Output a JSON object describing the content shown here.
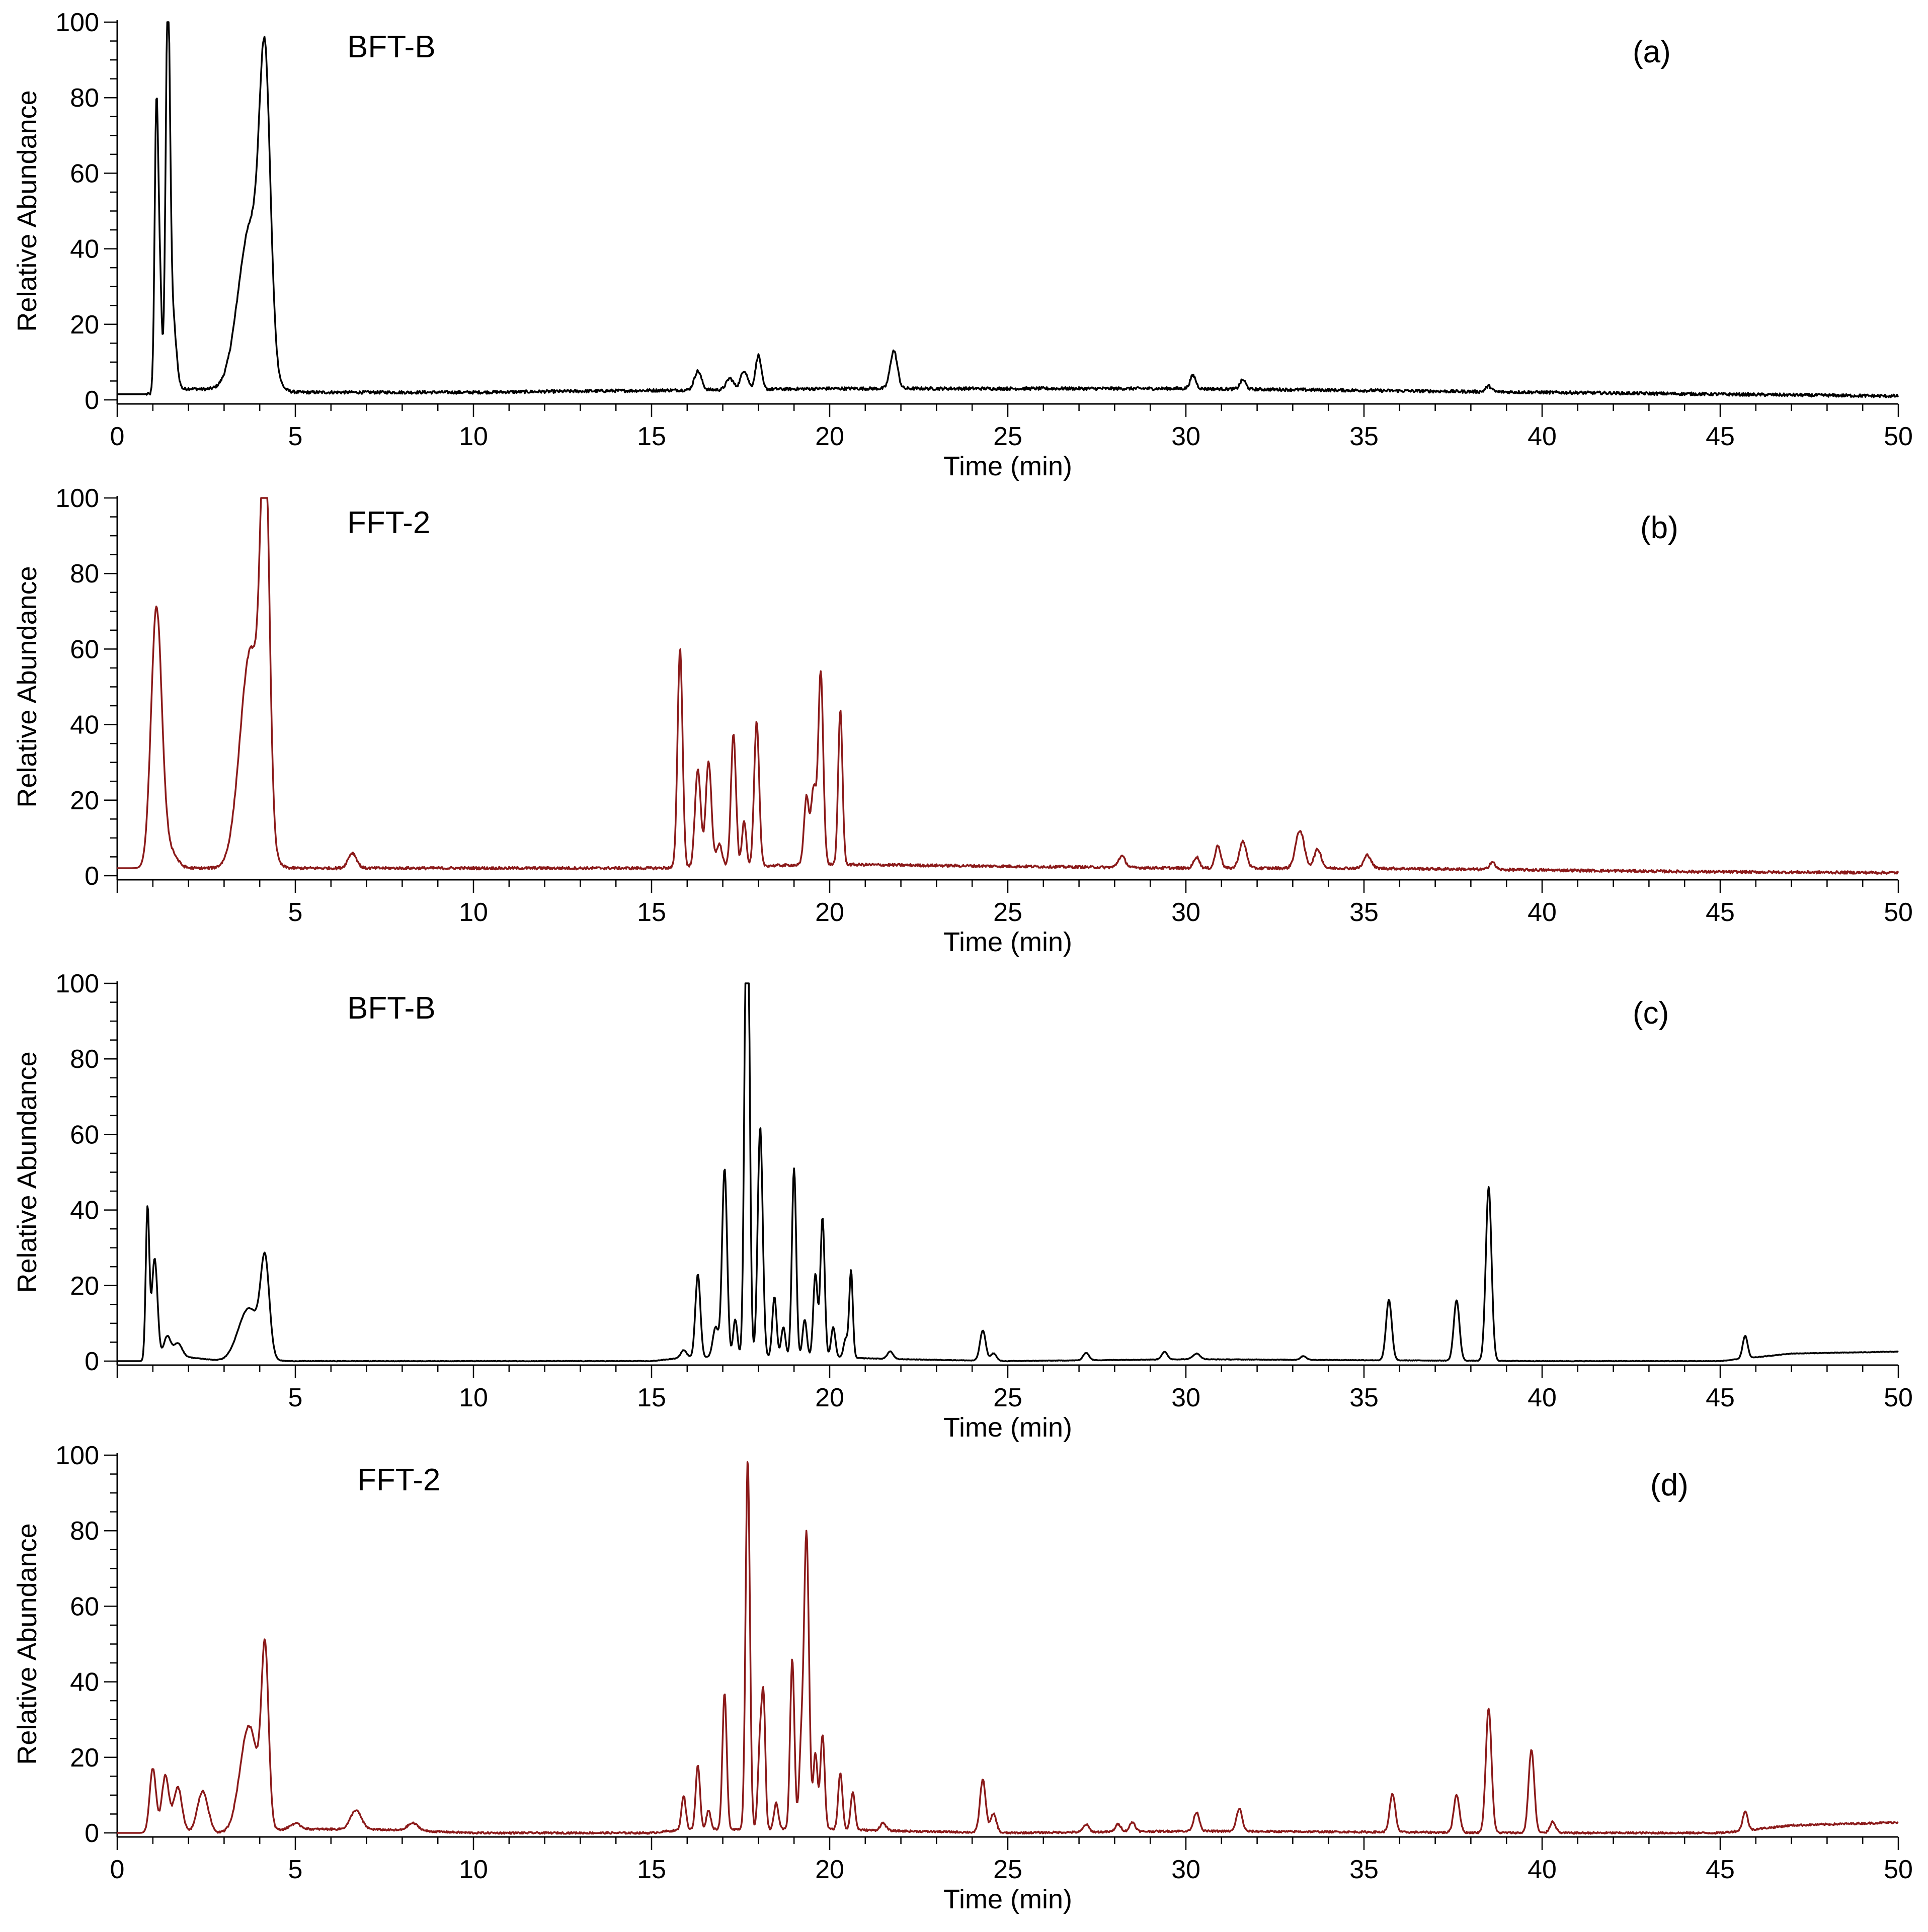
{
  "colors": {
    "black": "#000000",
    "dark_red": "#8b1a1a"
  },
  "chart_data": [
    {
      "type": "line",
      "panel_label": "(a)",
      "sample": "BFT-B",
      "line_color": "#000000",
      "xlabel": "Time (min)",
      "ylabel": "Relative Abundance",
      "xlim": [
        0,
        50
      ],
      "ylim": [
        0,
        100
      ],
      "xticks": [
        "0",
        "5",
        "10",
        "15",
        "20",
        "25",
        "30",
        "35",
        "40",
        "45",
        "50"
      ],
      "yticks": [
        "0",
        "20",
        "40",
        "60",
        "80",
        "100"
      ],
      "baseline": [
        [
          0,
          1.5
        ],
        [
          0.9,
          1.5
        ],
        [
          2,
          3
        ],
        [
          4.5,
          2
        ],
        [
          10,
          2
        ],
        [
          15,
          2.5
        ],
        [
          20,
          3
        ],
        [
          25,
          3
        ],
        [
          30,
          3
        ],
        [
          35,
          2.5
        ],
        [
          40,
          2
        ],
        [
          45,
          1.5
        ],
        [
          50,
          1
        ]
      ],
      "peaks": [
        [
          1.1,
          75,
          0.05
        ],
        [
          1.2,
          28,
          0.05
        ],
        [
          1.42,
          100,
          0.06
        ],
        [
          1.55,
          20,
          0.1
        ],
        [
          3.75,
          44,
          0.35
        ],
        [
          4.15,
          70,
          0.15
        ],
        [
          16.3,
          5,
          0.1
        ],
        [
          17.2,
          3,
          0.1
        ],
        [
          17.6,
          5,
          0.1
        ],
        [
          18.0,
          9,
          0.08
        ],
        [
          21.8,
          10,
          0.1
        ],
        [
          30.2,
          3.5,
          0.08
        ],
        [
          31.6,
          2.5,
          0.08
        ],
        [
          38.5,
          1.5,
          0.08
        ]
      ],
      "noise": 0.8
    },
    {
      "type": "line",
      "panel_label": "(b)",
      "sample": "FFT-2",
      "line_color": "#8b1a1a",
      "xlabel": "Time (min)",
      "ylabel": "Relative Abundance",
      "xlim": [
        0,
        50
      ],
      "ylim": [
        0,
        100
      ],
      "xticks": [
        "5",
        "10",
        "15",
        "20",
        "25",
        "30",
        "35",
        "40",
        "45",
        "50"
      ],
      "yticks": [
        "0",
        "20",
        "40",
        "60",
        "80",
        "100"
      ],
      "baseline": [
        [
          0,
          2
        ],
        [
          0.9,
          2
        ],
        [
          2,
          2
        ],
        [
          5,
          2
        ],
        [
          10,
          2
        ],
        [
          15,
          2
        ],
        [
          20,
          3
        ],
        [
          25,
          2.5
        ],
        [
          30,
          2
        ],
        [
          35,
          2
        ],
        [
          40,
          1.5
        ],
        [
          45,
          1
        ],
        [
          50,
          0.8
        ]
      ],
      "peaks": [
        [
          1.1,
          68,
          0.15
        ],
        [
          1.45,
          5,
          0.2
        ],
        [
          3.75,
          58,
          0.3
        ],
        [
          4.15,
          98,
          0.12
        ],
        [
          6.6,
          4,
          0.12
        ],
        [
          15.8,
          58,
          0.07
        ],
        [
          16.3,
          26,
          0.08
        ],
        [
          16.6,
          28,
          0.08
        ],
        [
          16.9,
          6,
          0.08
        ],
        [
          17.3,
          35,
          0.07
        ],
        [
          17.6,
          12,
          0.06
        ],
        [
          17.95,
          38,
          0.07
        ],
        [
          19.35,
          18,
          0.07
        ],
        [
          19.55,
          20,
          0.07
        ],
        [
          19.75,
          51,
          0.07
        ],
        [
          20.3,
          41,
          0.06
        ],
        [
          28.2,
          3,
          0.1
        ],
        [
          30.3,
          3,
          0.08
        ],
        [
          30.9,
          6,
          0.08
        ],
        [
          31.6,
          7,
          0.1
        ],
        [
          33.2,
          10,
          0.12
        ],
        [
          33.7,
          5,
          0.1
        ],
        [
          35.1,
          3.5,
          0.1
        ],
        [
          38.6,
          2,
          0.08
        ]
      ],
      "noise": 0.7
    },
    {
      "type": "line",
      "panel_label": "(c)",
      "sample": "BFT-B",
      "line_color": "#000000",
      "xlabel": "Time (min)",
      "ylabel": "Relative Abundance",
      "xlim": [
        0,
        50
      ],
      "ylim": [
        0,
        100
      ],
      "xticks": [
        "5",
        "10",
        "15",
        "20",
        "25",
        "30",
        "35",
        "40",
        "45",
        "50"
      ],
      "yticks": [
        "0",
        "20",
        "40",
        "60",
        "80",
        "100"
      ],
      "baseline": [
        [
          0,
          0
        ],
        [
          0.8,
          0
        ],
        [
          2,
          1
        ],
        [
          3,
          0
        ],
        [
          5,
          0
        ],
        [
          10,
          0
        ],
        [
          15,
          0
        ],
        [
          16,
          1
        ],
        [
          20,
          1
        ],
        [
          22,
          0.5
        ],
        [
          25,
          0
        ],
        [
          30,
          0.5
        ],
        [
          40,
          0
        ],
        [
          45,
          0
        ],
        [
          46,
          1
        ],
        [
          47,
          2
        ],
        [
          50,
          2.5
        ]
      ],
      "peaks": [
        [
          0.85,
          40,
          0.05
        ],
        [
          1.05,
          27,
          0.08
        ],
        [
          1.4,
          6,
          0.1
        ],
        [
          1.7,
          4,
          0.12
        ],
        [
          3.7,
          14,
          0.3
        ],
        [
          4.15,
          24,
          0.12
        ],
        [
          15.9,
          2,
          0.08
        ],
        [
          16.3,
          22,
          0.07
        ],
        [
          16.8,
          8,
          0.08
        ],
        [
          17.05,
          50,
          0.07
        ],
        [
          17.35,
          10,
          0.06
        ],
        [
          17.65,
          58,
          0.06
        ],
        [
          17.7,
          98,
          0.06
        ],
        [
          18.05,
          61,
          0.07
        ],
        [
          18.45,
          16,
          0.06
        ],
        [
          18.7,
          8,
          0.06
        ],
        [
          19.0,
          50,
          0.06
        ],
        [
          19.3,
          10,
          0.06
        ],
        [
          19.6,
          22,
          0.06
        ],
        [
          19.8,
          37,
          0.06
        ],
        [
          20.1,
          8,
          0.06
        ],
        [
          20.45,
          5,
          0.06
        ],
        [
          20.6,
          23,
          0.05
        ],
        [
          21.7,
          2,
          0.08
        ],
        [
          24.3,
          8,
          0.08
        ],
        [
          24.6,
          2,
          0.08
        ],
        [
          27.2,
          2,
          0.08
        ],
        [
          29.4,
          2,
          0.08
        ],
        [
          30.3,
          1.5,
          0.1
        ],
        [
          33.3,
          1,
          0.08
        ],
        [
          35.7,
          16,
          0.08
        ],
        [
          37.6,
          16,
          0.08
        ],
        [
          38.5,
          46,
          0.08
        ],
        [
          45.7,
          6,
          0.07
        ]
      ],
      "noise": 0.15
    },
    {
      "type": "line",
      "panel_label": "(d)",
      "sample": "FFT-2",
      "line_color": "#8b1a1a",
      "xlabel": "Time (min)",
      "ylabel": "Relative Abundance",
      "xlim": [
        0,
        50
      ],
      "ylim": [
        0,
        100
      ],
      "xticks": [
        "0",
        "5",
        "10",
        "15",
        "20",
        "25",
        "30",
        "35",
        "40",
        "45",
        "50"
      ],
      "yticks": [
        "0",
        "20",
        "40",
        "60",
        "80",
        "100"
      ],
      "baseline": [
        [
          0,
          0
        ],
        [
          0.8,
          0
        ],
        [
          3,
          0
        ],
        [
          5,
          1
        ],
        [
          7,
          1
        ],
        [
          10,
          0
        ],
        [
          15,
          0
        ],
        [
          16,
          1
        ],
        [
          20,
          1
        ],
        [
          22,
          0.5
        ],
        [
          25,
          0
        ],
        [
          30,
          0.5
        ],
        [
          40,
          0
        ],
        [
          45,
          0
        ],
        [
          46,
          1
        ],
        [
          47,
          2
        ],
        [
          50,
          2.8
        ]
      ],
      "peaks": [
        [
          1.0,
          17,
          0.09
        ],
        [
          1.35,
          15,
          0.1
        ],
        [
          1.7,
          12,
          0.12
        ],
        [
          2.4,
          11,
          0.15
        ],
        [
          3.7,
          28,
          0.25
        ],
        [
          4.15,
          45,
          0.1
        ],
        [
          5.0,
          1.5,
          0.15
        ],
        [
          6.7,
          5,
          0.15
        ],
        [
          8.3,
          2,
          0.15
        ],
        [
          15.9,
          9,
          0.06
        ],
        [
          16.3,
          17,
          0.06
        ],
        [
          16.6,
          5,
          0.06
        ],
        [
          17.05,
          36,
          0.06
        ],
        [
          17.7,
          98,
          0.06
        ],
        [
          18.05,
          24,
          0.06
        ],
        [
          18.15,
          30,
          0.05
        ],
        [
          18.5,
          7,
          0.06
        ],
        [
          18.95,
          45,
          0.06
        ],
        [
          19.2,
          20,
          0.06
        ],
        [
          19.35,
          78,
          0.07
        ],
        [
          19.6,
          20,
          0.06
        ],
        [
          19.8,
          25,
          0.06
        ],
        [
          20.3,
          15,
          0.06
        ],
        [
          20.65,
          10,
          0.06
        ],
        [
          21.5,
          2,
          0.08
        ],
        [
          24.3,
          14,
          0.08
        ],
        [
          24.6,
          5,
          0.08
        ],
        [
          27.2,
          2,
          0.08
        ],
        [
          28.1,
          2,
          0.08
        ],
        [
          28.5,
          2.5,
          0.08
        ],
        [
          30.3,
          5,
          0.08
        ],
        [
          31.5,
          6,
          0.08
        ],
        [
          35.8,
          10,
          0.08
        ],
        [
          37.6,
          10,
          0.08
        ],
        [
          38.5,
          33,
          0.08
        ],
        [
          39.7,
          22,
          0.08
        ],
        [
          40.3,
          3,
          0.08
        ],
        [
          45.7,
          5,
          0.07
        ]
      ],
      "noise": 0.5
    }
  ]
}
